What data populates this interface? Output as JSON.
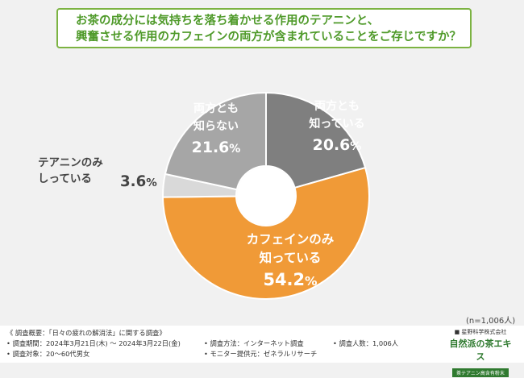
{
  "title": {
    "line1": "お茶の成分には気持ちを落ち着かせる作用のテアニンと、",
    "line2": "興奮させる作用のカフェインの両方が含まれていることをご存じですか？"
  },
  "chart_data": {
    "type": "pie",
    "title": "お茶の成分には気持ちを落ち着かせる作用のテアニンと、興奮させる作用のカフェインの両方が含まれていることをご存じですか？",
    "slices": [
      {
        "label": "両方とも知っている",
        "label_lines": [
          "両方とも",
          "知っている"
        ],
        "value": 20.6,
        "display": "20.6%",
        "color": "#7f7f7f"
      },
      {
        "label": "カフェインのみ知っている",
        "label_lines": [
          "カフェインのみ",
          "知っている"
        ],
        "value": 54.2,
        "display": "54.2%",
        "color": "#f09a37"
      },
      {
        "label": "テアニンのみしっている",
        "label_lines": [
          "テアニンのみ",
          "しっている"
        ],
        "value": 3.6,
        "display": "3.6%",
        "color": "#d9d9d9"
      },
      {
        "label": "両方とも知らない",
        "label_lines": [
          "両方とも",
          "知らない"
        ],
        "value": 21.6,
        "display": "21.6%",
        "color": "#a6a6a6"
      }
    ],
    "n_note": "(n=1,006人)"
  },
  "footer": {
    "overview": "《 調査概要：「日々の疲れの解消法」に関する調査》",
    "period": "• 調査期間：2024年3月21日(木) ～ 2024年3月22日(金)",
    "target": "• 調査対象：20～60代男女",
    "method": "• 調査方法：インターネット調査",
    "provider": "• モニター提供元：ゼネラルリサーチ",
    "people": "• 調査人数：1,006人"
  },
  "logo": {
    "company": "■ 星野科学株式会社",
    "brand": "自然派の茶エキス",
    "tagline": "茶テアニン高含有粉末"
  }
}
